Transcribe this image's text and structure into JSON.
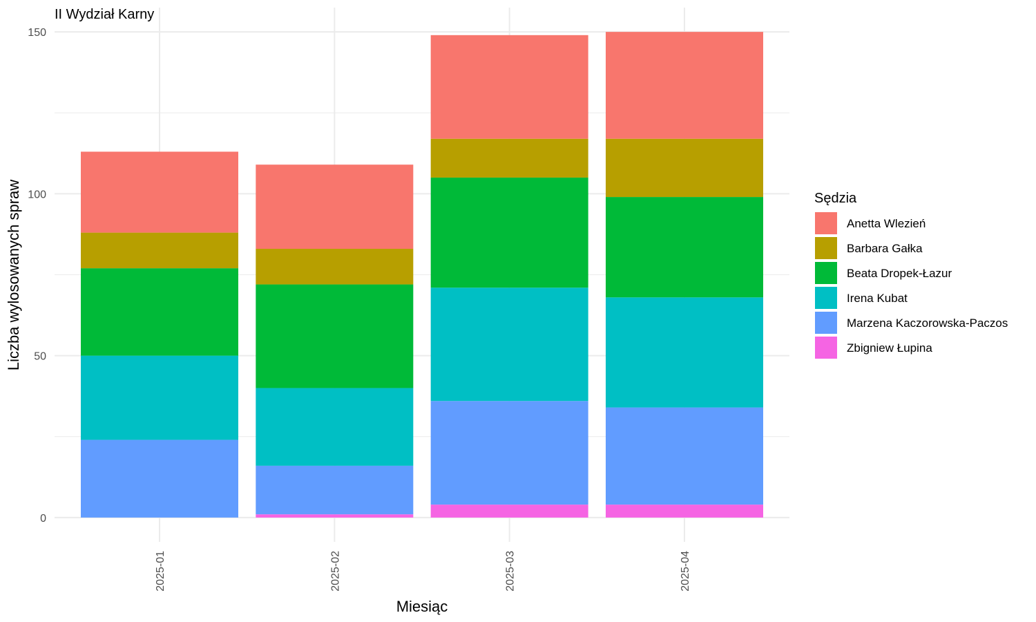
{
  "chart_data": {
    "type": "bar",
    "stacked": true,
    "title": "II Wydział Karny",
    "xlabel": "Miesiąc",
    "ylabel": "Liczba wylosowanych spraw",
    "ylim": [
      -7.5,
      157.5
    ],
    "yticks": [
      0,
      50,
      100,
      150
    ],
    "grid": true,
    "legend_position": "right",
    "legend_title": "Sędzia",
    "categories": [
      "2025-01",
      "2025-02",
      "2025-03",
      "2025-04"
    ],
    "series": [
      {
        "name": "Anetta Wlezień",
        "color": "#F8766D",
        "values": [
          25,
          26,
          32,
          33
        ]
      },
      {
        "name": "Barbara Gałka",
        "color": "#B79F00",
        "values": [
          11,
          11,
          12,
          18
        ]
      },
      {
        "name": "Beata Dropek-Łazur",
        "color": "#00BA38",
        "values": [
          27,
          32,
          34,
          31
        ]
      },
      {
        "name": "Irena Kubat",
        "color": "#00BFC4",
        "values": [
          26,
          24,
          35,
          34
        ]
      },
      {
        "name": "Marzena Kaczorowska-Paczos",
        "color": "#619CFF",
        "values": [
          24,
          15,
          32,
          30
        ]
      },
      {
        "name": "Zbigniew Łupina",
        "color": "#F564E3",
        "values": [
          0,
          1,
          4,
          4
        ]
      }
    ]
  }
}
